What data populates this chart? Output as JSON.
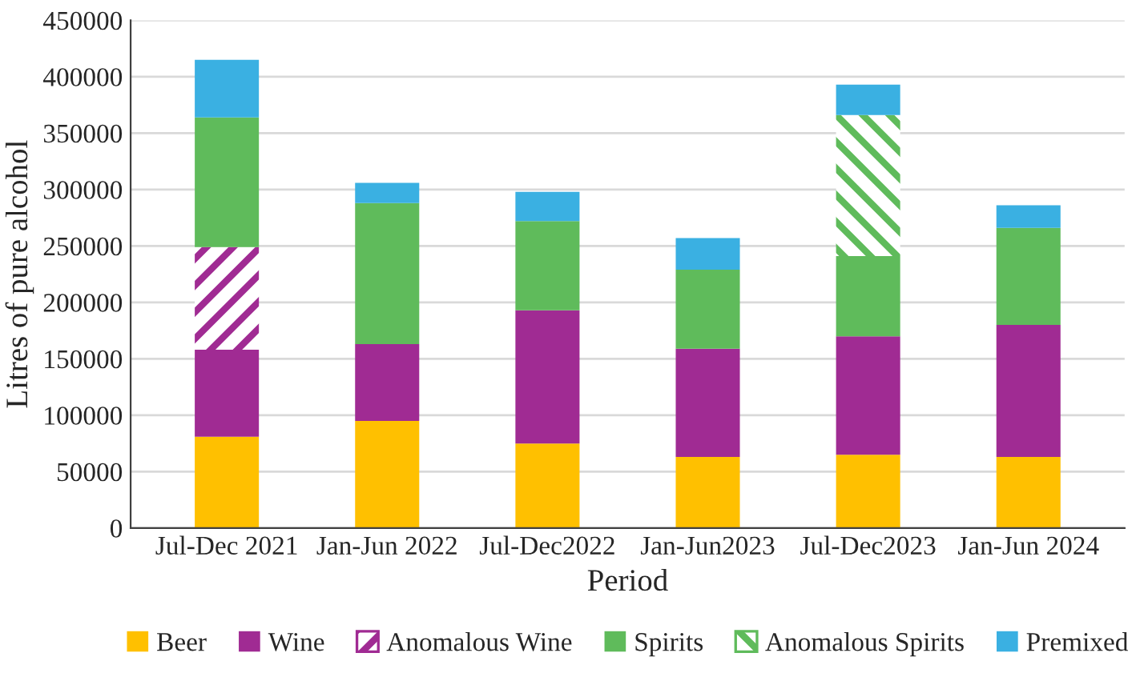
{
  "chart_data": {
    "type": "bar",
    "stacked": true,
    "xlabel": "Period",
    "ylabel": "Litres of pure alcohol",
    "categories": [
      "Jul-Dec 2021",
      "Jan-Jun 2022",
      "Jul-Dec2022",
      "Jan-Jun2023",
      "Jul-Dec2023",
      "Jan-Jun 2024"
    ],
    "series": [
      {
        "name": "Beer",
        "color": "#ffc000",
        "values": [
          81000,
          95000,
          75000,
          63000,
          65000,
          63000
        ]
      },
      {
        "name": "Wine",
        "color": "#a02b93",
        "values": [
          77000,
          68000,
          118000,
          96000,
          105000,
          117000
        ]
      },
      {
        "name": "Anomalous Wine",
        "color": "#a02b93",
        "values": [
          91000,
          null,
          null,
          null,
          null,
          null
        ]
      },
      {
        "name": "Spirits",
        "color": "#5fbb5b",
        "values": [
          115000,
          125000,
          79000,
          70000,
          71000,
          86000
        ]
      },
      {
        "name": "Anomalous Spirits",
        "color": "#5fbb5b",
        "values": [
          null,
          null,
          null,
          null,
          125000,
          null
        ]
      },
      {
        "name": "Premixed",
        "color": "#3ab0e2",
        "values": [
          51000,
          18000,
          26000,
          28000,
          27000,
          20000
        ]
      }
    ],
    "ylim": [
      0,
      450000
    ],
    "yticks": [
      0,
      50000,
      100000,
      150000,
      200000,
      250000,
      300000,
      350000,
      400000,
      450000
    ],
    "grid": "y",
    "legend": "bottom"
  }
}
